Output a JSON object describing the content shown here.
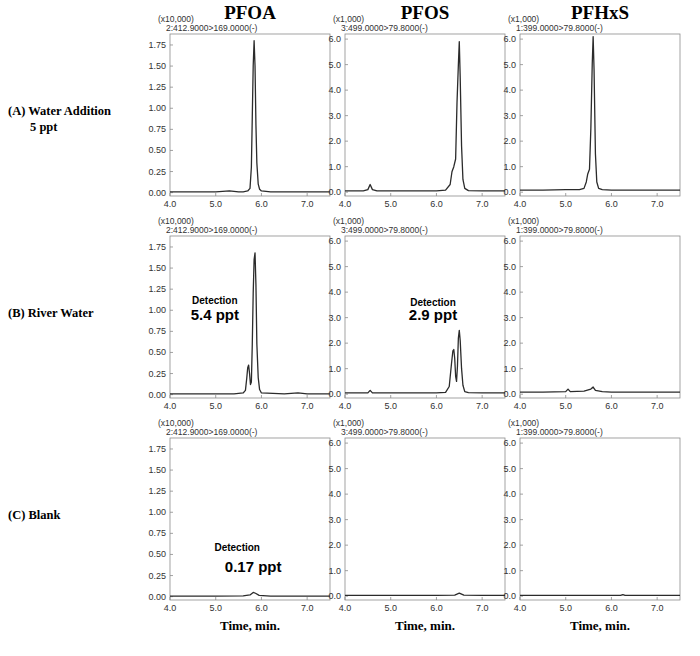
{
  "column_titles": [
    "PFOA",
    "PFOS",
    "PFHxS"
  ],
  "row_labels": [
    [
      "(A) Water Addition",
      "5 ppt"
    ],
    [
      "(B) River Water"
    ],
    [
      "(C) Blank"
    ]
  ],
  "chart_data": [
    {
      "type": "line",
      "subtitle": "2:412.9000>169.0000(-)",
      "y_label": "(x10,000)",
      "color": "#2b2b2b",
      "grid": false,
      "xlim": [
        4.0,
        7.5
      ],
      "xticks": [
        {
          "value": 4,
          "label": "4.0"
        },
        {
          "value": 5,
          "label": "5.0"
        },
        {
          "value": 6,
          "label": "6.0"
        },
        {
          "value": 7,
          "label": "7.0"
        }
      ],
      "ylim": [
        -0.04,
        1.88
      ],
      "yticks": [
        {
          "value": 0,
          "label": "0.00"
        },
        {
          "value": 0.25,
          "label": "0.25"
        },
        {
          "value": 0.5,
          "label": "0.50"
        },
        {
          "value": 0.75,
          "label": "0.75"
        },
        {
          "value": 1,
          "label": "1.00"
        },
        {
          "value": 1.25,
          "label": "1.25"
        },
        {
          "value": 1.5,
          "label": "1.50"
        },
        {
          "value": 1.75,
          "label": "1.75"
        }
      ],
      "x": [
        4.0,
        4.5,
        5.0,
        5.3,
        5.5,
        5.6,
        5.7,
        5.75,
        5.78,
        5.8,
        5.82,
        5.84,
        5.86,
        5.88,
        5.9,
        5.93,
        5.96,
        6.0,
        6.2,
        6.5,
        7.0,
        7.5
      ],
      "values": [
        0.01,
        0.01,
        0.01,
        0.02,
        0.01,
        0.01,
        0.02,
        0.05,
        0.3,
        0.9,
        1.5,
        1.8,
        1.5,
        0.8,
        0.35,
        0.1,
        0.04,
        0.02,
        0.01,
        0.01,
        0.01,
        0.01
      ]
    },
    {
      "type": "line",
      "subtitle": "3:499.0000>79.8000(-)",
      "y_label": "(x1,000)",
      "color": "#2b2b2b",
      "grid": false,
      "xlim": [
        4.0,
        7.5
      ],
      "xticks": [
        {
          "value": 4,
          "label": "4.0"
        },
        {
          "value": 5,
          "label": "5.0"
        },
        {
          "value": 6,
          "label": "6.0"
        },
        {
          "value": 7,
          "label": "7.0"
        }
      ],
      "ylim": [
        -0.15,
        6.2
      ],
      "yticks": [
        {
          "value": 0,
          "label": "0.0"
        },
        {
          "value": 1,
          "label": "1.0"
        },
        {
          "value": 2,
          "label": "2.0"
        },
        {
          "value": 3,
          "label": "3.0"
        },
        {
          "value": 4,
          "label": "4.0"
        },
        {
          "value": 5,
          "label": "5.0"
        },
        {
          "value": 6,
          "label": "6.0"
        }
      ],
      "x": [
        4.0,
        4.4,
        4.5,
        4.55,
        4.6,
        4.7,
        5.0,
        5.5,
        6.0,
        6.2,
        6.3,
        6.34,
        6.38,
        6.42,
        6.45,
        6.48,
        6.5,
        6.52,
        6.55,
        6.58,
        6.62,
        6.7,
        7.0,
        7.5
      ],
      "values": [
        0.05,
        0.05,
        0.1,
        0.3,
        0.1,
        0.05,
        0.05,
        0.05,
        0.05,
        0.08,
        0.3,
        0.8,
        1.0,
        1.3,
        3.5,
        5.0,
        5.9,
        4.5,
        1.8,
        0.5,
        0.15,
        0.06,
        0.05,
        0.05
      ]
    },
    {
      "type": "line",
      "subtitle": "1:399.0000>79.8000(-)",
      "y_label": "(x1,000)",
      "color": "#2b2b2b",
      "grid": false,
      "xlim": [
        4.0,
        7.5
      ],
      "xticks": [
        {
          "value": 4,
          "label": "4.0"
        },
        {
          "value": 5,
          "label": "5.0"
        },
        {
          "value": 6,
          "label": "6.0"
        },
        {
          "value": 7,
          "label": "7.0"
        }
      ],
      "ylim": [
        -0.15,
        6.2
      ],
      "yticks": [
        {
          "value": 0,
          "label": "0.0"
        },
        {
          "value": 1,
          "label": "1.0"
        },
        {
          "value": 2,
          "label": "2.0"
        },
        {
          "value": 3,
          "label": "3.0"
        },
        {
          "value": 4,
          "label": "4.0"
        },
        {
          "value": 5,
          "label": "5.0"
        },
        {
          "value": 6,
          "label": "6.0"
        }
      ],
      "x": [
        4.0,
        4.5,
        5.0,
        5.3,
        5.4,
        5.45,
        5.48,
        5.5,
        5.52,
        5.55,
        5.58,
        5.6,
        5.62,
        5.65,
        5.68,
        5.72,
        5.8,
        6.0,
        6.5,
        7.0,
        7.5
      ],
      "values": [
        0.08,
        0.08,
        0.1,
        0.1,
        0.15,
        0.4,
        0.7,
        0.8,
        0.9,
        2.5,
        5.0,
        6.1,
        4.8,
        1.5,
        0.4,
        0.15,
        0.1,
        0.08,
        0.08,
        0.08,
        0.08
      ]
    },
    {
      "type": "line",
      "subtitle": "2:412.9000>169.0000(-)",
      "y_label": "(x10,000)",
      "color": "#2b2b2b",
      "grid": false,
      "annotations": [
        "Detection",
        "5.4 ppt"
      ],
      "xlim": [
        4.0,
        7.5
      ],
      "xticks": [
        {
          "value": 4,
          "label": "4.0"
        },
        {
          "value": 5,
          "label": "5.0"
        },
        {
          "value": 6,
          "label": "6.0"
        },
        {
          "value": 7,
          "label": "7.0"
        }
      ],
      "ylim": [
        -0.04,
        1.88
      ],
      "yticks": [
        {
          "value": 0,
          "label": "0.00"
        },
        {
          "value": 0.25,
          "label": "0.25"
        },
        {
          "value": 0.5,
          "label": "0.50"
        },
        {
          "value": 0.75,
          "label": "0.75"
        },
        {
          "value": 1,
          "label": "1.00"
        },
        {
          "value": 1.25,
          "label": "1.25"
        },
        {
          "value": 1.5,
          "label": "1.50"
        },
        {
          "value": 1.75,
          "label": "1.75"
        }
      ],
      "x": [
        4.0,
        4.5,
        5.0,
        5.4,
        5.6,
        5.65,
        5.68,
        5.7,
        5.72,
        5.74,
        5.76,
        5.78,
        5.8,
        5.82,
        5.84,
        5.86,
        5.88,
        5.9,
        5.93,
        5.96,
        6.0,
        6.5,
        6.8,
        7.0,
        7.5
      ],
      "values": [
        0.01,
        0.01,
        0.01,
        0.01,
        0.02,
        0.05,
        0.2,
        0.32,
        0.35,
        0.25,
        0.12,
        0.15,
        0.6,
        1.2,
        1.6,
        1.68,
        1.3,
        0.6,
        0.2,
        0.06,
        0.02,
        0.01,
        0.02,
        0.01,
        0.01
      ]
    },
    {
      "type": "line",
      "subtitle": "3:499.0000>79.8000(-)",
      "y_label": "(x1,000)",
      "color": "#2b2b2b",
      "grid": false,
      "annotations": [
        "Detection",
        "2.9 ppt"
      ],
      "xlim": [
        4.0,
        7.5
      ],
      "xticks": [
        {
          "value": 4,
          "label": "4.0"
        },
        {
          "value": 5,
          "label": "5.0"
        },
        {
          "value": 6,
          "label": "6.0"
        },
        {
          "value": 7,
          "label": "7.0"
        }
      ],
      "ylim": [
        -0.15,
        6.2
      ],
      "yticks": [
        {
          "value": 0,
          "label": "0.0"
        },
        {
          "value": 1,
          "label": "1.0"
        },
        {
          "value": 2,
          "label": "2.0"
        },
        {
          "value": 3,
          "label": "3.0"
        },
        {
          "value": 4,
          "label": "4.0"
        },
        {
          "value": 5,
          "label": "5.0"
        },
        {
          "value": 6,
          "label": "6.0"
        }
      ],
      "x": [
        4.0,
        4.5,
        4.55,
        4.6,
        5.0,
        5.5,
        6.0,
        6.2,
        6.28,
        6.33,
        6.36,
        6.38,
        6.4,
        6.42,
        6.44,
        6.46,
        6.48,
        6.5,
        6.52,
        6.55,
        6.58,
        6.62,
        6.7,
        7.0,
        7.5
      ],
      "values": [
        0.05,
        0.05,
        0.15,
        0.05,
        0.05,
        0.05,
        0.05,
        0.07,
        0.3,
        1.2,
        1.7,
        1.75,
        1.4,
        0.7,
        0.5,
        1.1,
        2.2,
        2.5,
        2.1,
        1.0,
        0.35,
        0.1,
        0.06,
        0.05,
        0.05
      ]
    },
    {
      "type": "line",
      "subtitle": "1:399.0000>79.8000(-)",
      "y_label": "(x1,000)",
      "color": "#2b2b2b",
      "grid": false,
      "xlim": [
        4.0,
        7.5
      ],
      "xticks": [
        {
          "value": 4,
          "label": "4.0"
        },
        {
          "value": 5,
          "label": "5.0"
        },
        {
          "value": 6,
          "label": "6.0"
        },
        {
          "value": 7,
          "label": "7.0"
        }
      ],
      "ylim": [
        -0.15,
        6.2
      ],
      "yticks": [
        {
          "value": 0,
          "label": "0.0"
        },
        {
          "value": 1,
          "label": "1.0"
        },
        {
          "value": 2,
          "label": "2.0"
        },
        {
          "value": 3,
          "label": "3.0"
        },
        {
          "value": 4,
          "label": "4.0"
        },
        {
          "value": 5,
          "label": "5.0"
        },
        {
          "value": 6,
          "label": "6.0"
        }
      ],
      "x": [
        4.0,
        4.5,
        5.0,
        5.05,
        5.1,
        5.4,
        5.55,
        5.6,
        5.65,
        5.8,
        6.0,
        6.5,
        7.0,
        7.5
      ],
      "values": [
        0.08,
        0.08,
        0.1,
        0.2,
        0.1,
        0.12,
        0.2,
        0.28,
        0.15,
        0.1,
        0.08,
        0.08,
        0.08,
        0.08
      ]
    },
    {
      "type": "line",
      "subtitle": "2:412.9000>169.0000(-)",
      "y_label": "(x10,000)",
      "x_label": "Time, min.",
      "color": "#2b2b2b",
      "grid": false,
      "annotations": [
        "Detection",
        "0.17 ppt"
      ],
      "xlim": [
        4.0,
        7.5
      ],
      "xticks": [
        {
          "value": 4,
          "label": "4.0"
        },
        {
          "value": 5,
          "label": "5.0"
        },
        {
          "value": 6,
          "label": "6.0"
        },
        {
          "value": 7,
          "label": "7.0"
        }
      ],
      "ylim": [
        -0.04,
        1.88
      ],
      "yticks": [
        {
          "value": 0,
          "label": "0.00"
        },
        {
          "value": 0.25,
          "label": "0.25"
        },
        {
          "value": 0.5,
          "label": "0.50"
        },
        {
          "value": 0.75,
          "label": "0.75"
        },
        {
          "value": 1,
          "label": "1.00"
        },
        {
          "value": 1.25,
          "label": "1.25"
        },
        {
          "value": 1.5,
          "label": "1.50"
        },
        {
          "value": 1.75,
          "label": "1.75"
        }
      ],
      "x": [
        4.0,
        5.0,
        5.6,
        5.75,
        5.82,
        5.87,
        5.95,
        6.2,
        7.0,
        7.5
      ],
      "values": [
        0.005,
        0.005,
        0.01,
        0.02,
        0.05,
        0.04,
        0.015,
        0.005,
        0.005,
        0.005
      ]
    },
    {
      "type": "line",
      "subtitle": "3:499.0000>79.8000(-)",
      "y_label": "(x1,000)",
      "x_label": "Time, min.",
      "color": "#2b2b2b",
      "grid": false,
      "xlim": [
        4.0,
        7.5
      ],
      "xticks": [
        {
          "value": 4,
          "label": "4.0"
        },
        {
          "value": 5,
          "label": "5.0"
        },
        {
          "value": 6,
          "label": "6.0"
        },
        {
          "value": 7,
          "label": "7.0"
        }
      ],
      "ylim": [
        -0.15,
        6.2
      ],
      "yticks": [
        {
          "value": 0,
          "label": "0.0"
        },
        {
          "value": 1,
          "label": "1.0"
        },
        {
          "value": 2,
          "label": "2.0"
        },
        {
          "value": 3,
          "label": "3.0"
        },
        {
          "value": 4,
          "label": "4.0"
        },
        {
          "value": 5,
          "label": "5.0"
        },
        {
          "value": 6,
          "label": "6.0"
        }
      ],
      "x": [
        4.0,
        5.0,
        6.0,
        6.4,
        6.5,
        6.6,
        7.0,
        7.5
      ],
      "values": [
        0.03,
        0.03,
        0.03,
        0.04,
        0.12,
        0.04,
        0.03,
        0.03
      ]
    },
    {
      "type": "line",
      "subtitle": "1:399.0000>79.8000(-)",
      "y_label": "(x1,000)",
      "x_label": "Time, min.",
      "color": "#2b2b2b",
      "grid": false,
      "xlim": [
        4.0,
        7.5
      ],
      "xticks": [
        {
          "value": 4,
          "label": "4.0"
        },
        {
          "value": 5,
          "label": "5.0"
        },
        {
          "value": 6,
          "label": "6.0"
        },
        {
          "value": 7,
          "label": "7.0"
        }
      ],
      "ylim": [
        -0.15,
        6.2
      ],
      "yticks": [
        {
          "value": 0,
          "label": "0.0"
        },
        {
          "value": 1,
          "label": "1.0"
        },
        {
          "value": 2,
          "label": "2.0"
        },
        {
          "value": 3,
          "label": "3.0"
        },
        {
          "value": 4,
          "label": "4.0"
        },
        {
          "value": 5,
          "label": "5.0"
        },
        {
          "value": 6,
          "label": "6.0"
        }
      ],
      "x": [
        4.0,
        5.0,
        6.0,
        6.2,
        6.25,
        6.3,
        7.0,
        7.5
      ],
      "values": [
        0.03,
        0.03,
        0.03,
        0.03,
        0.06,
        0.03,
        0.03,
        0.03
      ]
    }
  ]
}
